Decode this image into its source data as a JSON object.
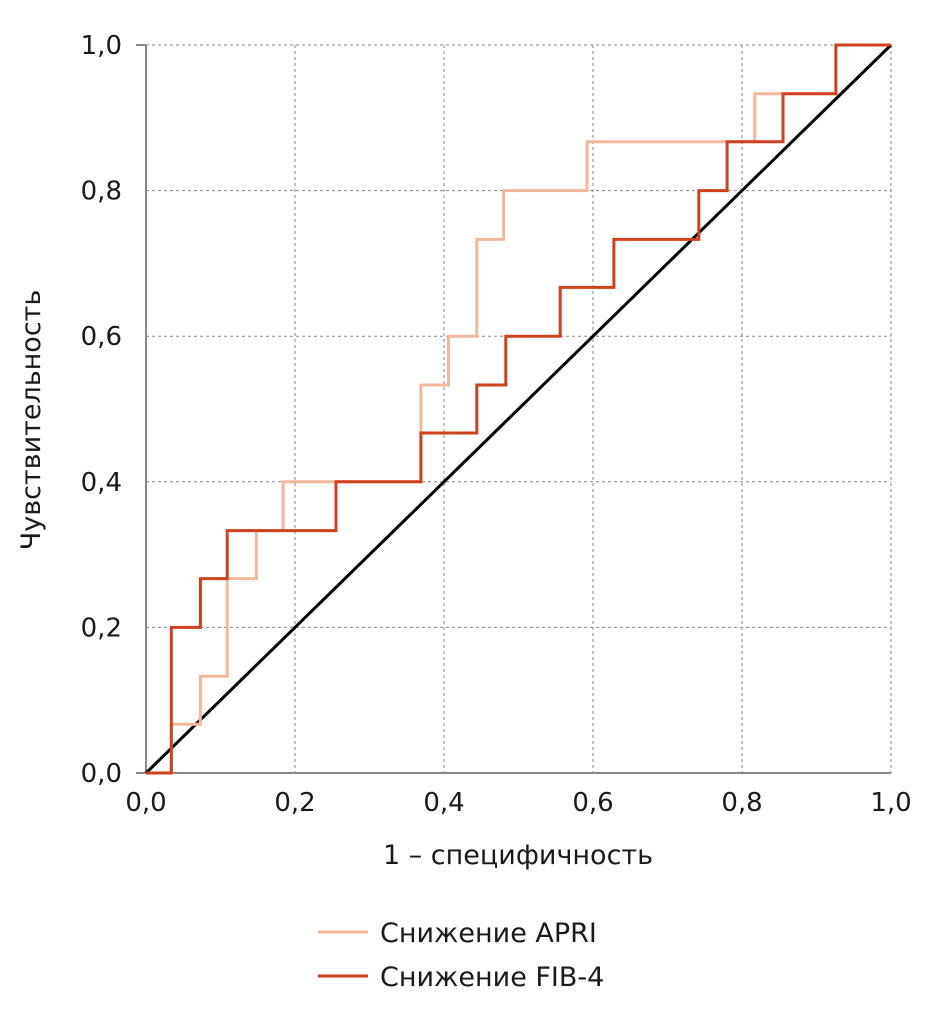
{
  "chart_data": {
    "type": "line",
    "title": "",
    "xlabel": "1 – специфичность",
    "ylabel": "Чувствительность",
    "xlim": [
      0,
      1
    ],
    "ylim": [
      0,
      1
    ],
    "grid": true,
    "legend_placement": "bottom-center",
    "xticks": [
      "0,0",
      "0,2",
      "0,4",
      "0,6",
      "0,8",
      "1,0"
    ],
    "yticks": [
      "0,0",
      "0,2",
      "0,4",
      "0,6",
      "0,8",
      "1,0"
    ],
    "series": [
      {
        "name": "Снижение APRI",
        "color": "#f0b89c",
        "points": [
          [
            0,
            0
          ],
          [
            0.034,
            0
          ],
          [
            0.034,
            0.067
          ],
          [
            0.073,
            0.067
          ],
          [
            0.073,
            0.133
          ],
          [
            0.109,
            0.133
          ],
          [
            0.109,
            0.267
          ],
          [
            0.148,
            0.267
          ],
          [
            0.148,
            0.333
          ],
          [
            0.184,
            0.333
          ],
          [
            0.184,
            0.4
          ],
          [
            0.369,
            0.4
          ],
          [
            0.369,
            0.533
          ],
          [
            0.406,
            0.533
          ],
          [
            0.406,
            0.6
          ],
          [
            0.444,
            0.6
          ],
          [
            0.444,
            0.733
          ],
          [
            0.48,
            0.733
          ],
          [
            0.48,
            0.8
          ],
          [
            0.592,
            0.8
          ],
          [
            0.592,
            0.867
          ],
          [
            0.817,
            0.867
          ],
          [
            0.817,
            0.933
          ],
          [
            0.926,
            0.933
          ],
          [
            0.926,
            1
          ],
          [
            1,
            1
          ]
        ]
      },
      {
        "name": "Снижение FIB-4",
        "color": "#cf4020",
        "points": [
          [
            0,
            0
          ],
          [
            0.034,
            0
          ],
          [
            0.034,
            0.2
          ],
          [
            0.073,
            0.2
          ],
          [
            0.073,
            0.267
          ],
          [
            0.109,
            0.267
          ],
          [
            0.109,
            0.333
          ],
          [
            0.255,
            0.333
          ],
          [
            0.255,
            0.4
          ],
          [
            0.369,
            0.4
          ],
          [
            0.369,
            0.467
          ],
          [
            0.444,
            0.467
          ],
          [
            0.444,
            0.533
          ],
          [
            0.483,
            0.533
          ],
          [
            0.483,
            0.6
          ],
          [
            0.556,
            0.6
          ],
          [
            0.556,
            0.667
          ],
          [
            0.628,
            0.667
          ],
          [
            0.628,
            0.733
          ],
          [
            0.742,
            0.733
          ],
          [
            0.742,
            0.8
          ],
          [
            0.78,
            0.8
          ],
          [
            0.78,
            0.867
          ],
          [
            0.855,
            0.867
          ],
          [
            0.855,
            0.933
          ],
          [
            0.926,
            0.933
          ],
          [
            0.926,
            1
          ],
          [
            1,
            1
          ]
        ]
      },
      {
        "name": "reference",
        "color": "#000000",
        "points": [
          [
            0,
            0
          ],
          [
            1,
            1
          ]
        ]
      }
    ]
  }
}
